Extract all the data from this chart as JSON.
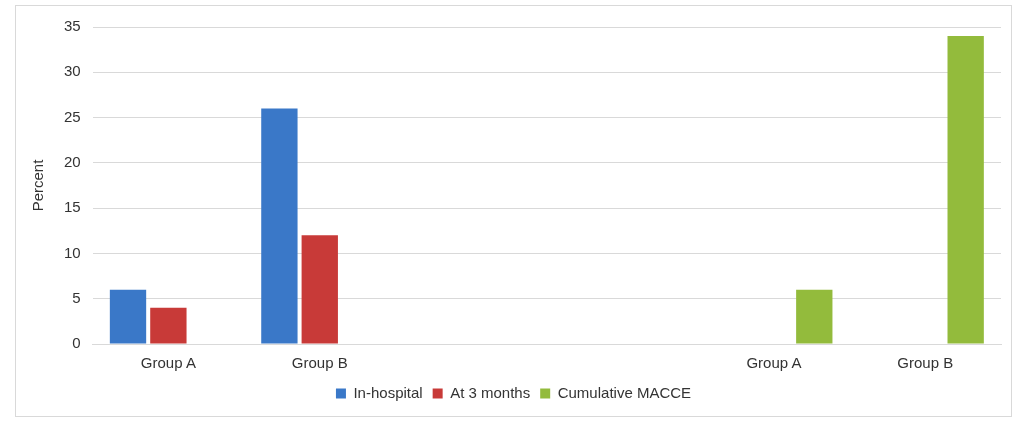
{
  "chart_data": {
    "type": "bar",
    "ylabel": "Percent",
    "categories": [
      "Group A",
      "Group B",
      null,
      null,
      "Group A",
      "Group B"
    ],
    "series": [
      {
        "name": "In-hospital",
        "color": "#3a78c8",
        "values": [
          6,
          26,
          null,
          null,
          null,
          null
        ]
      },
      {
        "name": "At 3 months",
        "color": "#c83a38",
        "values": [
          4,
          12,
          null,
          null,
          null,
          null
        ]
      },
      {
        "name": "Cumulative MACCE",
        "color": "#93bb3c",
        "values": [
          null,
          null,
          null,
          null,
          6,
          34
        ]
      }
    ],
    "ylim": [
      0,
      35
    ],
    "yticks": [
      0,
      5,
      10,
      15,
      20,
      25,
      30,
      35
    ],
    "grid": "y",
    "legend": "bottom"
  }
}
